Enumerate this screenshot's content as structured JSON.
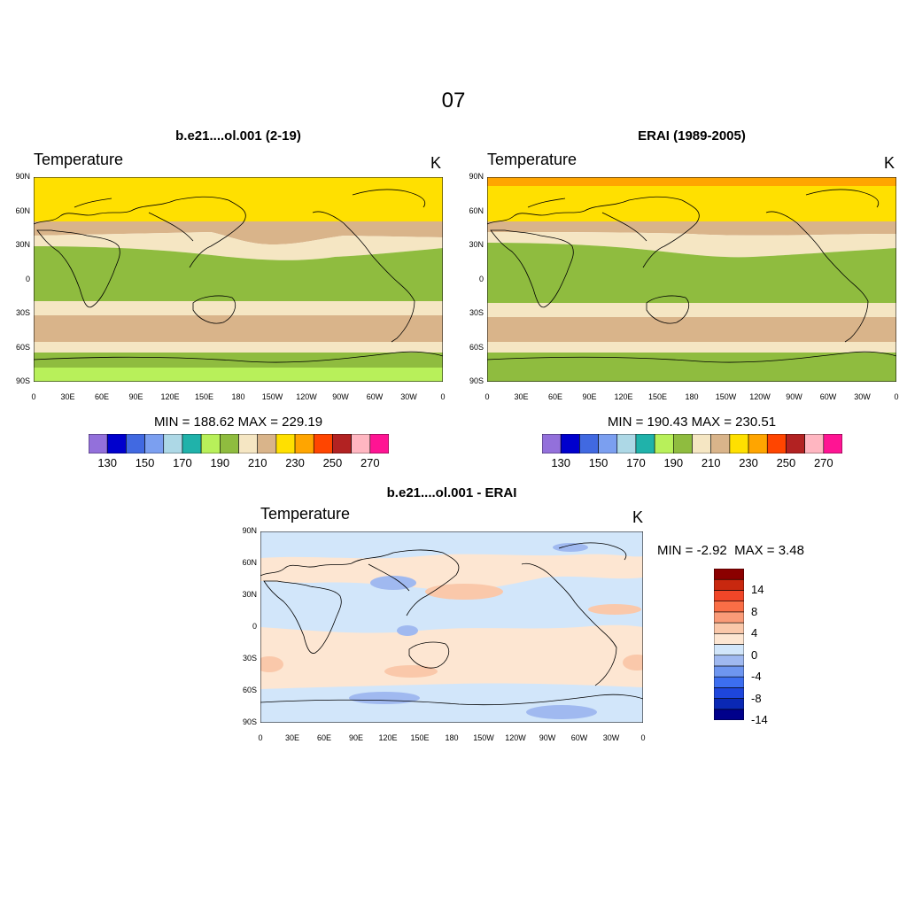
{
  "page": {
    "title": "07"
  },
  "panels": {
    "model": {
      "title": "b.e21....ol.001 (2-19)",
      "variable": "Temperature",
      "units": "K",
      "minmax": "MIN = 188.62  MAX = 229.19"
    },
    "obs": {
      "title": "ERAI (1989-2005)",
      "variable": "Temperature",
      "units": "K",
      "minmax": "MIN = 190.43  MAX = 230.51"
    },
    "diff": {
      "title": "b.e21....ol.001 - ERAI",
      "variable": "Temperature",
      "units": "K",
      "minmax_min": "MIN =  -2.92",
      "minmax_max": "MAX =   3.48"
    }
  },
  "axes": {
    "lat_labels": [
      "90N",
      "60N",
      "30N",
      "0",
      "30S",
      "60S",
      "90S"
    ],
    "lon_labels": [
      "0",
      "30E",
      "60E",
      "90E",
      "120E",
      "150E",
      "180",
      "150W",
      "120W",
      "90W",
      "60W",
      "30W",
      "0"
    ]
  },
  "colorbar_abs": {
    "colors": [
      "#9370db",
      "#0000cd",
      "#4169e1",
      "#7b9ff0",
      "#add8e6",
      "#20b2aa",
      "#b8f05a",
      "#8fbc3f",
      "#f5e6c3",
      "#d9b48a",
      "#ffe000",
      "#ffa500",
      "#ff4500",
      "#b22222",
      "#ffb6c1",
      "#ff1493"
    ],
    "tick_labels": [
      "130",
      "150",
      "170",
      "190",
      "210",
      "230",
      "250",
      "270"
    ]
  },
  "colorbar_diff": {
    "colors": [
      "#00008b",
      "#0a28b4",
      "#1e46dc",
      "#3c6ef0",
      "#6e96f0",
      "#a0b9f0",
      "#d2e6fa",
      "#fde6d2",
      "#fac8aa",
      "#fa9b78",
      "#fa6e46",
      "#f04628",
      "#c8280f",
      "#8b0000"
    ],
    "tick_labels": [
      "14",
      "8",
      "4",
      "0",
      "-4",
      "-8",
      "-14"
    ]
  },
  "map_colors": {
    "cat_150_170": "#b8f05a",
    "cat_170_190": "#8fbc3f",
    "cat_190_200": "#f5e6c3",
    "cat_200_210": "#d9b48a",
    "cat_210_220": "#ffe000",
    "cat_220_230": "#ffa500",
    "diff_neg_small": "#d2e6fa",
    "diff_neg_med": "#a0b9f0",
    "diff_pos_small": "#fde6d2",
    "diff_pos_med": "#fac8aa",
    "land_outline": "#000000"
  }
}
